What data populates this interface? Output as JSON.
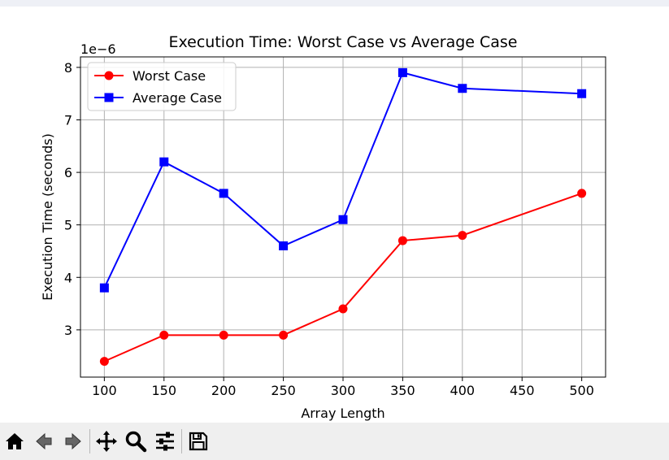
{
  "chart_data": {
    "type": "line",
    "title": "Execution Time: Worst Case vs Average Case",
    "xlabel": "Array Length",
    "ylabel": "Execution Time (seconds)",
    "y_offset_label": "1e−6",
    "x": [
      100,
      150,
      200,
      250,
      300,
      350,
      400,
      500
    ],
    "xticks": [
      "100",
      "150",
      "200",
      "250",
      "300",
      "350",
      "400",
      "450",
      "500"
    ],
    "yticks": [
      "3",
      "4",
      "5",
      "6",
      "7",
      "8"
    ],
    "xlim": [
      80,
      520
    ],
    "ylim": [
      2.1,
      8.2
    ],
    "grid": true,
    "legend_position": "upper-left",
    "series": [
      {
        "name": "Worst Case",
        "color": "#ff0000",
        "marker": "circle",
        "values": [
          2.4,
          2.9,
          2.9,
          2.9,
          3.4,
          4.7,
          4.8,
          5.6
        ]
      },
      {
        "name": "Average Case",
        "color": "#0000ff",
        "marker": "square",
        "values": [
          3.8,
          6.2,
          5.6,
          4.6,
          5.1,
          7.9,
          7.6,
          7.5
        ]
      }
    ]
  },
  "toolbar": {
    "buttons": [
      "home-icon",
      "back-icon",
      "forward-icon",
      "pan-icon",
      "zoom-icon",
      "configure-icon",
      "save-icon"
    ]
  }
}
